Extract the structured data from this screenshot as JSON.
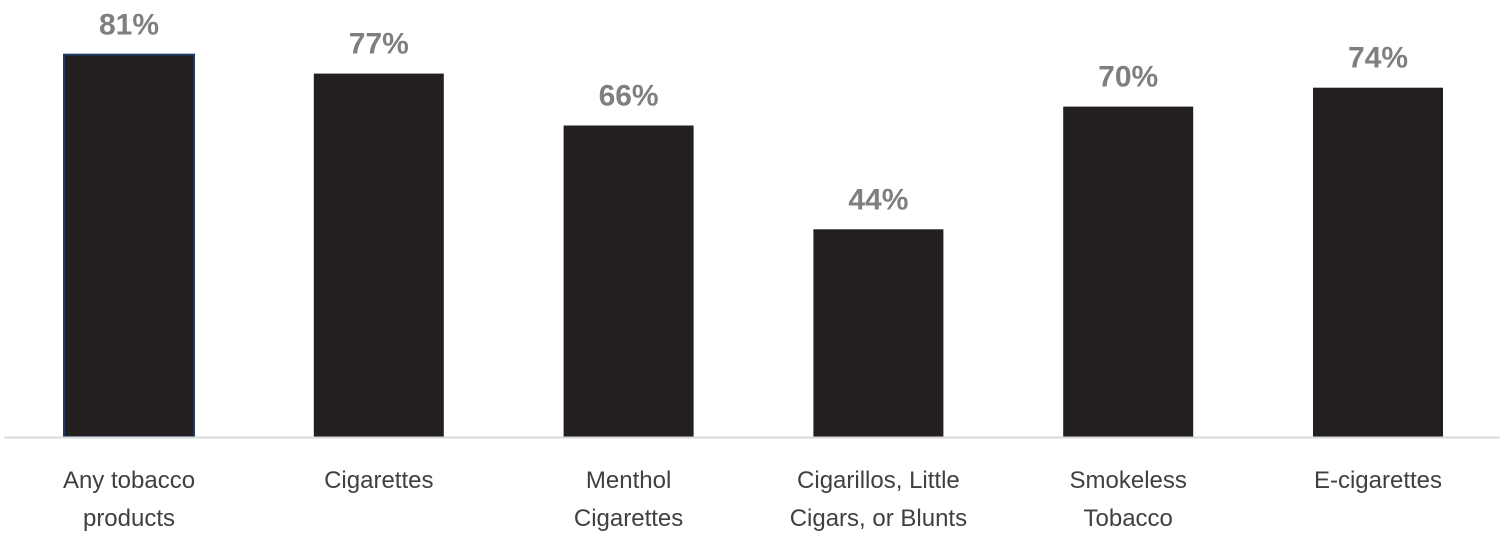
{
  "chart_data": {
    "type": "bar",
    "categories": [
      [
        "Any tobacco",
        "products"
      ],
      [
        "Cigarettes"
      ],
      [
        "Menthol",
        "Cigarettes"
      ],
      [
        "Cigarillos, Little",
        "Cigars, or Blunts"
      ],
      [
        "Smokeless",
        "Tobacco"
      ],
      [
        "E-cigarettes"
      ]
    ],
    "values": [
      81,
      77,
      66,
      44,
      70,
      74
    ],
    "value_labels": [
      "81%",
      "77%",
      "66%",
      "44%",
      "70%",
      "74%"
    ],
    "title": "",
    "xlabel": "",
    "ylabel": "",
    "ylim": [
      0,
      100
    ],
    "grid": false,
    "legend": "none",
    "colors": {
      "bar_fill": "#231f20",
      "first_bar_outline": "#1f3864",
      "value_label": "#7f7f7f",
      "category_label": "#404040",
      "axis_line": "#d9d9d9"
    }
  }
}
